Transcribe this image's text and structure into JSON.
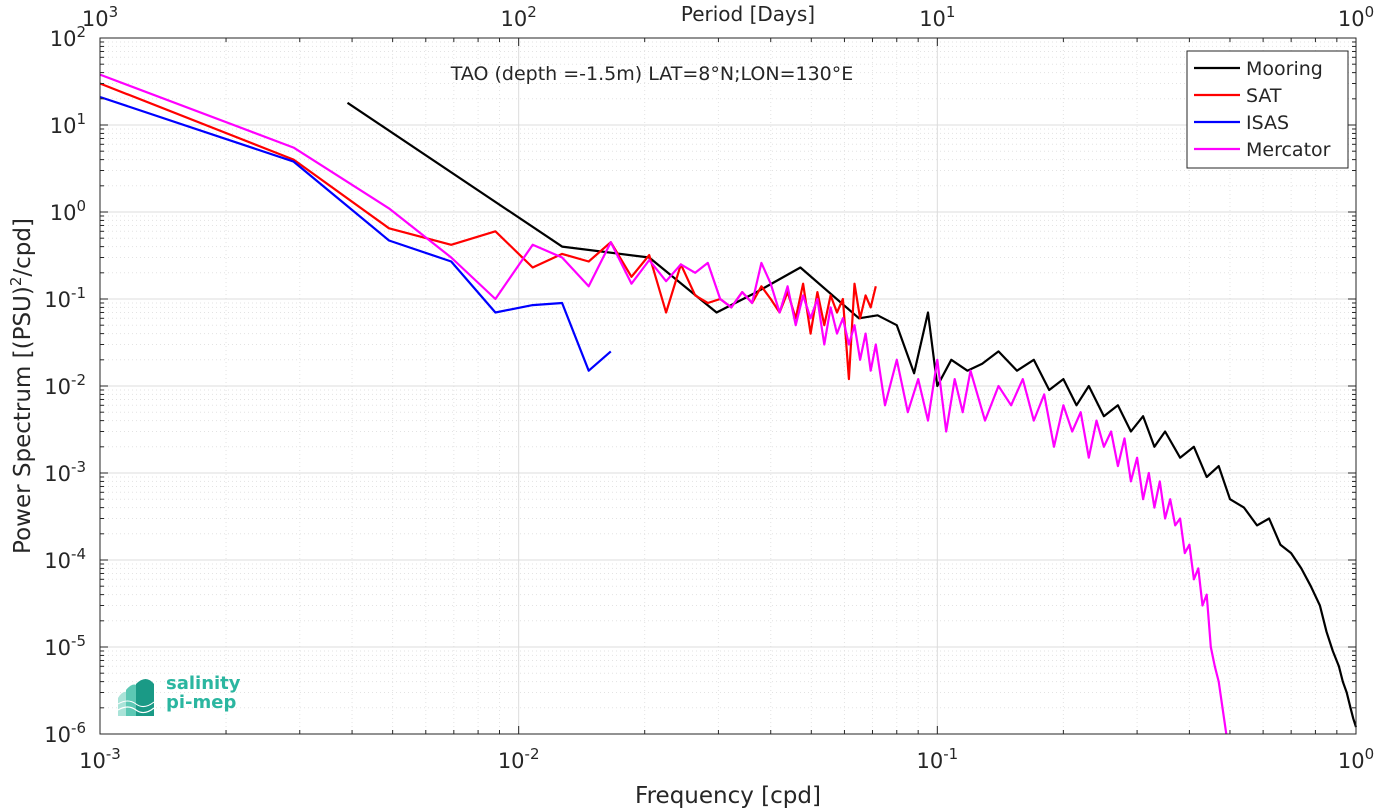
{
  "chart_data": {
    "type": "line",
    "title": "TAO (depth =-1.5m) LAT=8°N;LON=130°E",
    "xlabel": "Frequency [cpd]",
    "ylabel": "Power Spectrum [(PSU)²/cpd]",
    "ylabel_main": "Power Spectrum [(PSU)",
    "ylabel_sup": "2",
    "ylabel_tail": "/cpd]",
    "top_xlabel": "Period [Days]",
    "x_scale": "log",
    "y_scale": "log",
    "xlim": [
      0.001,
      1
    ],
    "ylim": [
      1e-06,
      100
    ],
    "grid": true,
    "legend_position": "top-right",
    "x_ticks": [
      {
        "value": 0.001,
        "base": "10",
        "exp": "-3"
      },
      {
        "value": 0.01,
        "base": "10",
        "exp": "-2"
      },
      {
        "value": 0.1,
        "base": "10",
        "exp": "-1"
      },
      {
        "value": 1,
        "base": "10",
        "exp": "0"
      }
    ],
    "top_ticks": [
      {
        "value": 1000,
        "base": "10",
        "exp": "3"
      },
      {
        "value": 100,
        "base": "10",
        "exp": "2"
      },
      {
        "value": 10,
        "base": "10",
        "exp": "1"
      },
      {
        "value": 1,
        "base": "10",
        "exp": "0"
      }
    ],
    "y_ticks": [
      {
        "value": 100,
        "base": "10",
        "exp": "2"
      },
      {
        "value": 10,
        "base": "10",
        "exp": "1"
      },
      {
        "value": 1,
        "base": "10",
        "exp": "0"
      },
      {
        "value": 0.1,
        "base": "10",
        "exp": "-1"
      },
      {
        "value": 0.01,
        "base": "10",
        "exp": "-2"
      },
      {
        "value": 0.001,
        "base": "10",
        "exp": "-3"
      },
      {
        "value": 0.0001,
        "base": "10",
        "exp": "-4"
      },
      {
        "value": 1e-05,
        "base": "10",
        "exp": "-5"
      },
      {
        "value": 1e-06,
        "base": "10",
        "exp": "-6"
      }
    ],
    "series": [
      {
        "name": "Mooring",
        "color": "#000000",
        "x": [
          0.0039,
          0.0127,
          0.0205,
          0.0297,
          0.037,
          0.0471,
          0.065,
          0.072,
          0.08,
          0.088,
          0.095,
          0.1,
          0.108,
          0.118,
          0.128,
          0.14,
          0.155,
          0.17,
          0.185,
          0.2,
          0.215,
          0.23,
          0.25,
          0.27,
          0.29,
          0.31,
          0.33,
          0.35,
          0.38,
          0.41,
          0.44,
          0.47,
          0.5,
          0.54,
          0.58,
          0.62,
          0.66,
          0.7,
          0.74,
          0.78,
          0.82,
          0.85,
          0.88,
          0.91,
          0.93,
          0.95,
          0.97,
          0.985,
          1.0
        ],
        "y": [
          18,
          0.4,
          0.3,
          0.07,
          0.12,
          0.23,
          0.06,
          0.065,
          0.05,
          0.014,
          0.07,
          0.01,
          0.02,
          0.015,
          0.018,
          0.025,
          0.015,
          0.02,
          0.009,
          0.012,
          0.006,
          0.01,
          0.0045,
          0.006,
          0.003,
          0.0045,
          0.002,
          0.003,
          0.0015,
          0.002,
          0.0009,
          0.0012,
          0.0005,
          0.0004,
          0.00025,
          0.0003,
          0.00015,
          0.00012,
          8e-05,
          5e-05,
          3e-05,
          1.5e-05,
          9e-06,
          6e-06,
          4e-06,
          3e-06,
          2e-06,
          1.5e-06,
          1.2e-06
        ]
      },
      {
        "name": "SAT",
        "color": "#ff0000",
        "x": [
          0.001,
          0.0029,
          0.0049,
          0.0069,
          0.0088,
          0.0108,
          0.0127,
          0.0147,
          0.0166,
          0.0186,
          0.0205,
          0.0225,
          0.0244,
          0.0264,
          0.0283,
          0.0303,
          0.0322,
          0.0342,
          0.0361,
          0.038,
          0.04,
          0.042,
          0.0439,
          0.0459,
          0.0478,
          0.0498,
          0.0517,
          0.0537,
          0.0556,
          0.0576,
          0.0595,
          0.0615,
          0.0634,
          0.0654,
          0.0674,
          0.0693,
          0.0713
        ],
        "y": [
          30,
          4,
          0.65,
          0.42,
          0.6,
          0.23,
          0.33,
          0.27,
          0.45,
          0.18,
          0.32,
          0.07,
          0.25,
          0.11,
          0.09,
          0.1,
          0.08,
          0.12,
          0.09,
          0.14,
          0.1,
          0.07,
          0.12,
          0.06,
          0.15,
          0.04,
          0.12,
          0.05,
          0.11,
          0.07,
          0.1,
          0.012,
          0.15,
          0.06,
          0.11,
          0.08,
          0.14
        ]
      },
      {
        "name": "ISAS",
        "color": "#0000ff",
        "x": [
          0.001,
          0.0029,
          0.0049,
          0.0069,
          0.0088,
          0.0108,
          0.0127,
          0.0147,
          0.0166
        ],
        "y": [
          21,
          3.8,
          0.47,
          0.27,
          0.07,
          0.085,
          0.09,
          0.015,
          0.025
        ]
      },
      {
        "name": "Mercator",
        "color": "#ff00ff",
        "x": [
          0.001,
          0.0029,
          0.0049,
          0.0069,
          0.0088,
          0.0108,
          0.0127,
          0.0147,
          0.0166,
          0.0186,
          0.0205,
          0.0225,
          0.0244,
          0.0264,
          0.0283,
          0.0303,
          0.0322,
          0.0342,
          0.0361,
          0.038,
          0.04,
          0.042,
          0.0439,
          0.0459,
          0.0478,
          0.0498,
          0.0517,
          0.0537,
          0.0556,
          0.0576,
          0.0595,
          0.0615,
          0.0634,
          0.0654,
          0.0674,
          0.0693,
          0.0713,
          0.075,
          0.08,
          0.085,
          0.09,
          0.095,
          0.1,
          0.105,
          0.11,
          0.115,
          0.12,
          0.13,
          0.14,
          0.15,
          0.16,
          0.17,
          0.18,
          0.19,
          0.2,
          0.21,
          0.22,
          0.23,
          0.24,
          0.25,
          0.26,
          0.27,
          0.28,
          0.29,
          0.3,
          0.31,
          0.32,
          0.33,
          0.34,
          0.35,
          0.36,
          0.37,
          0.38,
          0.39,
          0.4,
          0.41,
          0.42,
          0.43,
          0.44,
          0.45,
          0.46,
          0.47,
          0.48,
          0.49
        ],
        "y": [
          38,
          5.5,
          1.1,
          0.3,
          0.1,
          0.42,
          0.3,
          0.14,
          0.45,
          0.15,
          0.28,
          0.16,
          0.25,
          0.2,
          0.26,
          0.1,
          0.08,
          0.12,
          0.09,
          0.26,
          0.15,
          0.07,
          0.14,
          0.05,
          0.11,
          0.06,
          0.1,
          0.03,
          0.08,
          0.04,
          0.06,
          0.03,
          0.05,
          0.02,
          0.04,
          0.015,
          0.03,
          0.006,
          0.02,
          0.005,
          0.012,
          0.004,
          0.02,
          0.003,
          0.012,
          0.005,
          0.015,
          0.004,
          0.01,
          0.006,
          0.012,
          0.004,
          0.008,
          0.002,
          0.006,
          0.003,
          0.005,
          0.0015,
          0.004,
          0.002,
          0.003,
          0.0012,
          0.0025,
          0.0008,
          0.0015,
          0.0005,
          0.001,
          0.0004,
          0.0008,
          0.0003,
          0.0005,
          0.00025,
          0.0003,
          0.00012,
          0.00015,
          6e-05,
          8e-05,
          3e-05,
          4e-05,
          1e-05,
          6e-06,
          4e-06,
          2e-06,
          1e-06
        ]
      }
    ]
  },
  "logo": {
    "line1": "salinity",
    "line2": "pi-mep"
  }
}
